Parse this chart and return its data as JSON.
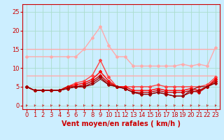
{
  "title": "",
  "xlabel": "Vent moyen/en rafales ( km/h )",
  "ylabel": "",
  "bg_color": "#cceeff",
  "grid_color": "#aaddcc",
  "x_ticks": [
    0,
    1,
    2,
    3,
    4,
    5,
    6,
    7,
    8,
    9,
    10,
    11,
    12,
    13,
    14,
    15,
    16,
    17,
    18,
    19,
    20,
    21,
    22,
    23
  ],
  "y_ticks": [
    0,
    5,
    10,
    15,
    20,
    25
  ],
  "ylim": [
    -1,
    27
  ],
  "xlim": [
    -0.5,
    23.5
  ],
  "series": [
    {
      "x": [
        0,
        1,
        2,
        3,
        4,
        5,
        6,
        7,
        8,
        9,
        10,
        11,
        12,
        13,
        14,
        15,
        16,
        17,
        18,
        19,
        20,
        21,
        22,
        23
      ],
      "y": [
        15,
        15,
        15,
        15,
        15,
        15,
        15,
        15,
        15,
        15,
        15,
        15,
        15,
        15,
        15,
        15,
        15,
        15,
        15,
        15,
        15,
        15,
        15,
        15
      ],
      "color": "#ffaaaa",
      "lw": 1.0,
      "marker": null,
      "ms": 0
    },
    {
      "x": [
        0,
        1,
        2,
        3,
        4,
        5,
        6,
        7,
        8,
        9,
        10,
        11,
        12,
        13,
        14,
        15,
        16,
        17,
        18,
        19,
        20,
        21,
        22,
        23
      ],
      "y": [
        8,
        8,
        8,
        8,
        8,
        8,
        8,
        8,
        8,
        8,
        8,
        8,
        8,
        8,
        8,
        8,
        8,
        8,
        8,
        8,
        8,
        8,
        8,
        8
      ],
      "color": "#ffaaaa",
      "lw": 1.0,
      "marker": null,
      "ms": 0
    },
    {
      "x": [
        0,
        1,
        2,
        3,
        4,
        5,
        6,
        7,
        8,
        9,
        10,
        11,
        12,
        13,
        14,
        15,
        16,
        17,
        18,
        19,
        20,
        21,
        22,
        23
      ],
      "y": [
        13,
        null,
        null,
        13,
        null,
        13,
        13,
        15,
        18,
        21,
        16,
        13,
        13,
        10.5,
        10.5,
        10.5,
        10.5,
        10.5,
        10.5,
        11,
        10.5,
        11,
        10.5,
        15.5
      ],
      "color": "#ffaaaa",
      "lw": 1.0,
      "marker": "D",
      "ms": 2.0
    },
    {
      "x": [
        0,
        1,
        2,
        3,
        4,
        5,
        6,
        7,
        8,
        9,
        10,
        11,
        12,
        13,
        14,
        15,
        16,
        17,
        18,
        19,
        20,
        21,
        22,
        23
      ],
      "y": [
        5,
        4,
        4,
        4,
        4,
        5,
        6,
        6.5,
        8,
        12,
        7.5,
        5,
        5,
        5,
        5,
        5,
        5.5,
        5,
        5,
        5,
        5,
        5,
        5.5,
        7.5
      ],
      "color": "#ff4444",
      "lw": 1.0,
      "marker": "D",
      "ms": 2.0
    },
    {
      "x": [
        0,
        1,
        2,
        3,
        4,
        5,
        6,
        7,
        8,
        9,
        10,
        11,
        12,
        13,
        14,
        15,
        16,
        17,
        18,
        19,
        20,
        21,
        22,
        23
      ],
      "y": [
        5,
        4,
        4,
        4,
        4,
        5,
        5.5,
        6,
        7,
        9,
        6.5,
        5,
        5,
        4,
        4,
        4,
        4.5,
        4,
        4,
        4,
        4.5,
        4,
        5,
        7
      ],
      "color": "#ff0000",
      "lw": 1.0,
      "marker": "D",
      "ms": 2.0
    },
    {
      "x": [
        0,
        1,
        2,
        3,
        4,
        5,
        6,
        7,
        8,
        9,
        10,
        11,
        12,
        13,
        14,
        15,
        16,
        17,
        18,
        19,
        20,
        21,
        22,
        23
      ],
      "y": [
        5,
        4,
        4,
        4,
        4,
        5,
        5,
        5.5,
        6.5,
        8,
        6,
        5,
        4.5,
        3.5,
        3.5,
        3.5,
        4,
        3.5,
        3.5,
        3.5,
        4,
        3.5,
        5,
        6.5
      ],
      "color": "#cc0000",
      "lw": 1.0,
      "marker": "D",
      "ms": 2.0
    },
    {
      "x": [
        0,
        1,
        2,
        3,
        4,
        5,
        6,
        7,
        8,
        9,
        10,
        11,
        12,
        13,
        14,
        15,
        16,
        17,
        18,
        19,
        20,
        21,
        22,
        23
      ],
      "y": [
        5,
        4,
        4,
        4,
        4,
        4.5,
        5,
        5,
        6,
        7.5,
        5.5,
        5,
        4.5,
        3.5,
        3,
        3,
        3.5,
        3,
        2.5,
        2.5,
        3.5,
        4,
        5,
        6
      ],
      "color": "#aa0000",
      "lw": 1.0,
      "marker": "D",
      "ms": 2.0
    },
    {
      "x": [
        0,
        1,
        2,
        3,
        4,
        5,
        6,
        7,
        8,
        9,
        10,
        11,
        12,
        13,
        14,
        15,
        16,
        17,
        18,
        19,
        20,
        21,
        22,
        23
      ],
      "y": [
        5,
        4,
        4,
        4,
        4,
        4.5,
        5,
        5,
        5.5,
        7,
        5.5,
        5,
        4.5,
        3.5,
        3,
        3,
        3.5,
        3,
        2.5,
        2.5,
        4,
        5,
        5,
        6
      ],
      "color": "#880000",
      "lw": 0.8,
      "marker": null,
      "ms": 0
    }
  ],
  "xlabel_color": "#cc0000",
  "xlabel_fontsize": 7,
  "tick_color": "#cc0000",
  "tick_fontsize": 6,
  "arrow_color": "#cc0000",
  "spine_color": "#cc0000"
}
